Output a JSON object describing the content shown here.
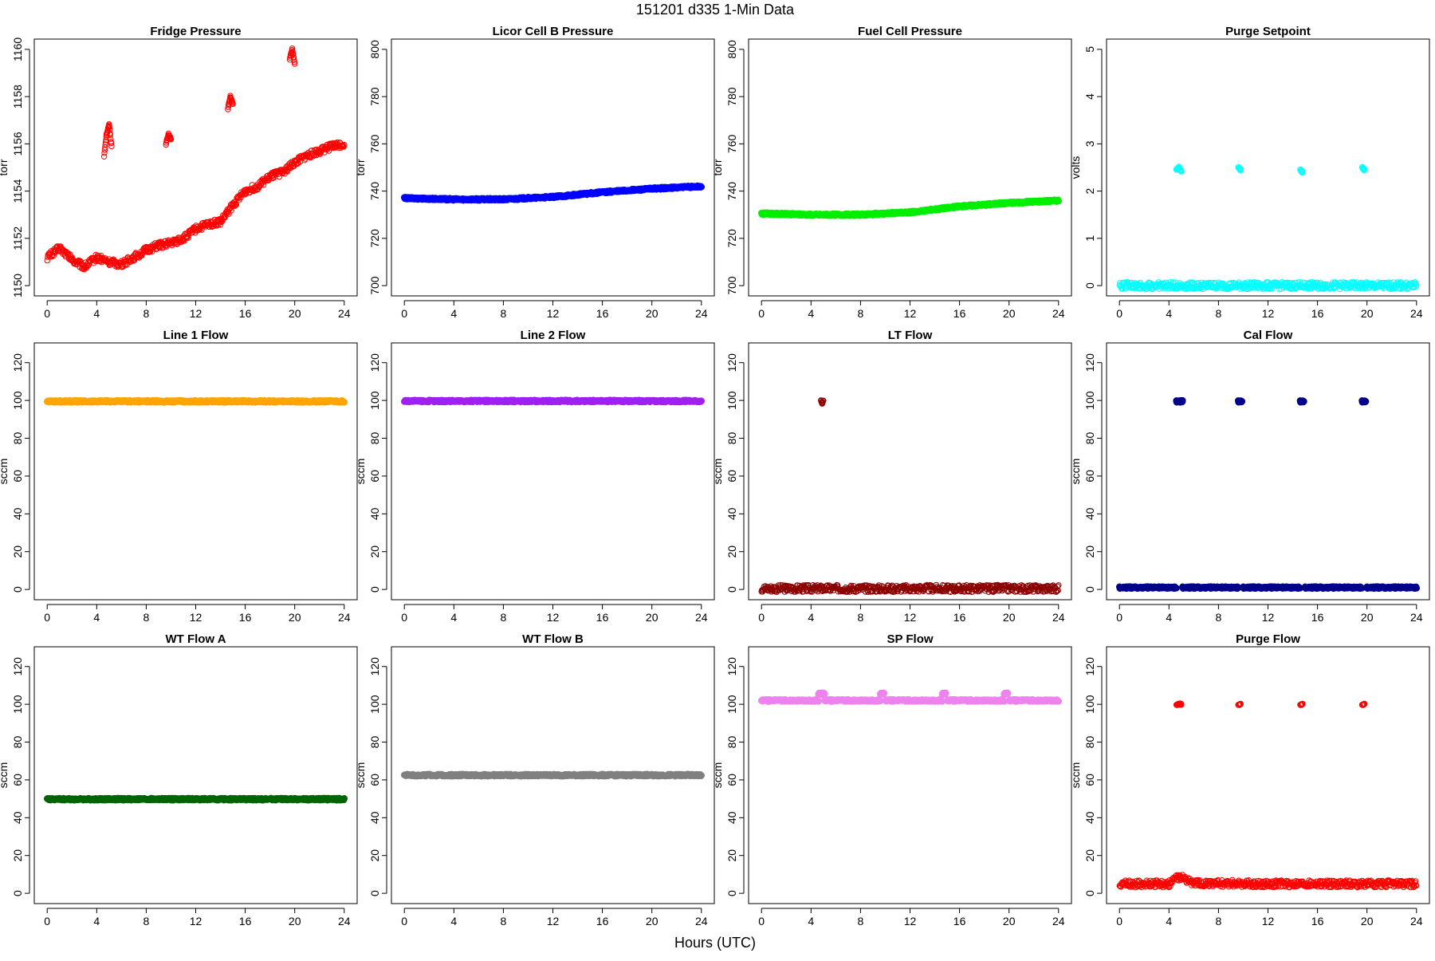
{
  "page": {
    "title": "151201    d335    1-Min Data",
    "x_axis_title": "Hours (UTC)"
  },
  "chart_data": [
    {
      "type": "scatter",
      "title": "Fridge Pressure",
      "ylabel": "torr",
      "xlim": [
        0,
        24
      ],
      "ylim": [
        1150,
        1160
      ],
      "xticks": [
        0,
        4,
        8,
        12,
        16,
        20,
        24
      ],
      "yticks": [
        1150,
        1152,
        1154,
        1156,
        1158,
        1160
      ],
      "color": "#ff0000",
      "marker": "open",
      "series": [
        {
          "x": [
            0,
            1,
            2,
            3,
            4,
            5,
            6,
            7,
            8,
            9,
            10,
            11,
            12,
            13,
            14,
            15,
            16,
            17,
            18,
            19,
            20,
            21,
            22,
            23,
            24
          ],
          "y": [
            1151.2,
            1151.6,
            1151.1,
            1150.8,
            1151.2,
            1151.0,
            1150.9,
            1151.2,
            1151.5,
            1151.7,
            1151.8,
            1152.0,
            1152.4,
            1152.6,
            1152.7,
            1153.4,
            1154.0,
            1154.2,
            1154.6,
            1154.8,
            1155.2,
            1155.5,
            1155.7,
            1155.9,
            1156.0
          ]
        },
        {
          "x": [
            4.6,
            4.8,
            5.0,
            5.2
          ],
          "y": [
            1155.5,
            1156.4,
            1156.8,
            1155.9
          ]
        },
        {
          "x": [
            9.6,
            9.8,
            10.0
          ],
          "y": [
            1156.0,
            1156.4,
            1156.2
          ]
        },
        {
          "x": [
            14.6,
            14.8,
            15.0
          ],
          "y": [
            1157.5,
            1158.0,
            1157.7
          ]
        },
        {
          "x": [
            19.6,
            19.8,
            20.0
          ],
          "y": [
            1159.6,
            1160.0,
            1159.4
          ]
        }
      ]
    },
    {
      "type": "scatter",
      "title": "Licor Cell B Pressure",
      "ylabel": "torr",
      "xlim": [
        0,
        24
      ],
      "ylim": [
        700,
        800
      ],
      "xticks": [
        0,
        4,
        8,
        12,
        16,
        20,
        24
      ],
      "yticks": [
        700,
        720,
        740,
        760,
        780,
        800
      ],
      "color": "#0000ff",
      "marker": "filled",
      "series": [
        {
          "x": [
            0,
            4,
            8,
            12,
            16,
            20,
            24
          ],
          "y": [
            737,
            736.5,
            736.5,
            737.5,
            739.5,
            741,
            742
          ]
        }
      ]
    },
    {
      "type": "scatter",
      "title": "Fuel Cell Pressure",
      "ylabel": "torr",
      "xlim": [
        0,
        24
      ],
      "ylim": [
        700,
        800
      ],
      "xticks": [
        0,
        4,
        8,
        12,
        16,
        20,
        24
      ],
      "yticks": [
        700,
        720,
        740,
        760,
        780,
        800
      ],
      "color": "#00ee00",
      "marker": "filled",
      "series": [
        {
          "x": [
            0,
            4,
            8,
            12,
            16,
            20,
            24
          ],
          "y": [
            730.5,
            730,
            730,
            731,
            733.5,
            735,
            736
          ]
        }
      ]
    },
    {
      "type": "scatter",
      "title": "Purge Setpoint",
      "ylabel": "volts",
      "xlim": [
        0,
        24
      ],
      "ylim": [
        0,
        5
      ],
      "xticks": [
        0,
        4,
        8,
        12,
        16,
        20,
        24
      ],
      "yticks": [
        0,
        1,
        2,
        3,
        4,
        5
      ],
      "color": "#00ffff",
      "marker": "open",
      "series": [
        {
          "x": [
            0,
            24
          ],
          "y": [
            0,
            0
          ]
        },
        {
          "x": [
            4.6,
            4.8,
            5.0
          ],
          "y": [
            2.45,
            2.5,
            2.4
          ]
        },
        {
          "x": [
            9.6,
            9.8
          ],
          "y": [
            2.5,
            2.45
          ]
        },
        {
          "x": [
            14.6,
            14.8
          ],
          "y": [
            2.45,
            2.4
          ]
        },
        {
          "x": [
            19.6,
            19.8
          ],
          "y": [
            2.5,
            2.45
          ]
        }
      ]
    },
    {
      "type": "scatter",
      "title": "Line 1 Flow",
      "ylabel": "sccm",
      "xlim": [
        0,
        24
      ],
      "ylim": [
        0,
        125
      ],
      "xticks": [
        0,
        4,
        8,
        12,
        16,
        20,
        24
      ],
      "yticks": [
        0,
        20,
        40,
        60,
        80,
        100,
        120
      ],
      "color": "#ffa500",
      "marker": "filled",
      "series": [
        {
          "x": [
            0,
            24
          ],
          "y": [
            99.5,
            99.5
          ]
        }
      ]
    },
    {
      "type": "scatter",
      "title": "Line 2 Flow",
      "ylabel": "sccm",
      "xlim": [
        0,
        24
      ],
      "ylim": [
        0,
        125
      ],
      "xticks": [
        0,
        4,
        8,
        12,
        16,
        20,
        24
      ],
      "yticks": [
        0,
        20,
        40,
        60,
        80,
        100,
        120
      ],
      "color": "#a020f0",
      "marker": "filled",
      "series": [
        {
          "x": [
            0,
            24
          ],
          "y": [
            99.7,
            99.7
          ]
        }
      ]
    },
    {
      "type": "scatter",
      "title": "LT Flow",
      "ylabel": "sccm",
      "xlim": [
        0,
        24
      ],
      "ylim": [
        0,
        125
      ],
      "xticks": [
        0,
        4,
        8,
        12,
        16,
        20,
        24
      ],
      "yticks": [
        0,
        20,
        40,
        60,
        80,
        100,
        120
      ],
      "color": "#8b0000",
      "marker": "open",
      "series": [
        {
          "x": [
            0,
            24
          ],
          "y": [
            0.5,
            0.5
          ]
        },
        {
          "x": [
            4.8,
            4.9,
            5.0
          ],
          "y": [
            100.5,
            98.5,
            99.8
          ]
        }
      ]
    },
    {
      "type": "scatter",
      "title": "Cal Flow",
      "ylabel": "sccm",
      "xlim": [
        0,
        24
      ],
      "ylim": [
        0,
        125
      ],
      "xticks": [
        0,
        4,
        8,
        12,
        16,
        20,
        24
      ],
      "yticks": [
        0,
        20,
        40,
        60,
        80,
        100,
        120
      ],
      "color": "#00008b",
      "marker": "filled",
      "series": [
        {
          "x": [
            0,
            4.6
          ],
          "y": [
            1,
            1
          ]
        },
        {
          "x": [
            5.1,
            9.6
          ],
          "y": [
            1,
            1
          ]
        },
        {
          "x": [
            10.0,
            14.6
          ],
          "y": [
            1,
            1
          ]
        },
        {
          "x": [
            15.0,
            19.6
          ],
          "y": [
            1,
            1
          ]
        },
        {
          "x": [
            20.0,
            24
          ],
          "y": [
            1,
            1
          ]
        },
        {
          "x": [
            4.6,
            4.9,
            5.1
          ],
          "y": [
            99.5,
            99.5,
            99.5
          ]
        },
        {
          "x": [
            9.6,
            9.9
          ],
          "y": [
            99.5,
            99.5
          ]
        },
        {
          "x": [
            14.6,
            14.9
          ],
          "y": [
            99.5,
            99.5
          ]
        },
        {
          "x": [
            19.6,
            19.9
          ],
          "y": [
            99.5,
            99.5
          ]
        }
      ]
    },
    {
      "type": "scatter",
      "title": "WT Flow A",
      "ylabel": "sccm",
      "xlim": [
        0,
        24
      ],
      "ylim": [
        0,
        125
      ],
      "xticks": [
        0,
        4,
        8,
        12,
        16,
        20,
        24
      ],
      "yticks": [
        0,
        20,
        40,
        60,
        80,
        100,
        120
      ],
      "color": "#006400",
      "marker": "filled",
      "series": [
        {
          "x": [
            0,
            24
          ],
          "y": [
            49.8,
            49.8
          ]
        }
      ]
    },
    {
      "type": "scatter",
      "title": "WT Flow B",
      "ylabel": "sccm",
      "xlim": [
        0,
        24
      ],
      "ylim": [
        0,
        125
      ],
      "xticks": [
        0,
        4,
        8,
        12,
        16,
        20,
        24
      ],
      "yticks": [
        0,
        20,
        40,
        60,
        80,
        100,
        120
      ],
      "color": "#808080",
      "marker": "filled",
      "series": [
        {
          "x": [
            0,
            24
          ],
          "y": [
            62.5,
            62.5
          ]
        }
      ]
    },
    {
      "type": "scatter",
      "title": "SP Flow",
      "ylabel": "sccm",
      "xlim": [
        0,
        24
      ],
      "ylim": [
        0,
        125
      ],
      "xticks": [
        0,
        4,
        8,
        12,
        16,
        20,
        24
      ],
      "yticks": [
        0,
        20,
        40,
        60,
        80,
        100,
        120
      ],
      "color": "#ee82ee",
      "marker": "filled",
      "series": [
        {
          "x": [
            0,
            4.6
          ],
          "y": [
            102,
            102
          ]
        },
        {
          "x": [
            5.1,
            9.6
          ],
          "y": [
            102,
            102
          ]
        },
        {
          "x": [
            10.0,
            14.6
          ],
          "y": [
            102,
            102
          ]
        },
        {
          "x": [
            15.0,
            19.6
          ],
          "y": [
            102,
            102
          ]
        },
        {
          "x": [
            20.0,
            24
          ],
          "y": [
            102,
            102
          ]
        },
        {
          "x": [
            4.6,
            4.9,
            5.1
          ],
          "y": [
            105.5,
            105.5,
            105.5
          ]
        },
        {
          "x": [
            9.6,
            9.9
          ],
          "y": [
            105.5,
            105.5
          ]
        },
        {
          "x": [
            14.6,
            14.9
          ],
          "y": [
            105.5,
            105.5
          ]
        },
        {
          "x": [
            19.6,
            19.9
          ],
          "y": [
            105.5,
            105.5
          ]
        }
      ]
    },
    {
      "type": "scatter",
      "title": "Purge Flow",
      "ylabel": "sccm",
      "xlim": [
        0,
        24
      ],
      "ylim": [
        0,
        125
      ],
      "xticks": [
        0,
        4,
        8,
        12,
        16,
        20,
        24
      ],
      "yticks": [
        0,
        20,
        40,
        60,
        80,
        100,
        120
      ],
      "color": "#ff0000",
      "marker": "open",
      "series": [
        {
          "x": [
            0,
            4,
            4.9,
            6,
            12,
            18,
            24
          ],
          "y": [
            5,
            5,
            9,
            5.5,
            5,
            5,
            5
          ]
        },
        {
          "x": [
            4.6,
            4.8,
            5.0
          ],
          "y": [
            100,
            100,
            100
          ]
        },
        {
          "x": [
            9.6,
            9.8
          ],
          "y": [
            100,
            100
          ]
        },
        {
          "x": [
            14.6,
            14.8
          ],
          "y": [
            100,
            100
          ]
        },
        {
          "x": [
            19.6,
            19.8
          ],
          "y": [
            100,
            100
          ]
        }
      ]
    }
  ]
}
